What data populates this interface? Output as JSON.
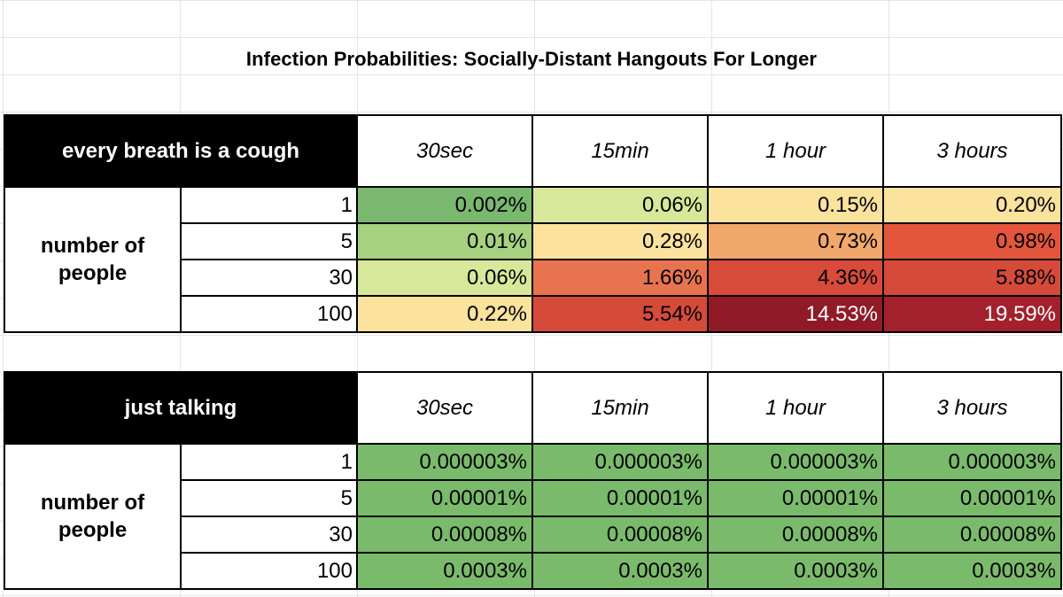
{
  "title": "Infection Probabilities: Socially-Distant Hangouts For Longer",
  "tables": [
    {
      "label": "every breath is a cough",
      "row_group_label": "number of people",
      "columns": [
        "30sec",
        "15min",
        "1 hour",
        "3 hours"
      ],
      "rows": [
        {
          "count": "1",
          "values": [
            "0.002%",
            "0.06%",
            "0.15%",
            "0.20%"
          ],
          "colors": [
            "#79b86e",
            "#d8e89a",
            "#fbe29d",
            "#fbe29d"
          ]
        },
        {
          "count": "5",
          "values": [
            "0.01%",
            "0.28%",
            "0.73%",
            "0.98%"
          ],
          "colors": [
            "#a6d17f",
            "#fbe29d",
            "#f1a86a",
            "#e4553b"
          ]
        },
        {
          "count": "30",
          "values": [
            "0.06%",
            "1.66%",
            "4.36%",
            "5.88%"
          ],
          "colors": [
            "#d8e89a",
            "#e8744f",
            "#d84b3b",
            "#d64a3a"
          ]
        },
        {
          "count": "100",
          "values": [
            "0.22%",
            "5.54%",
            "14.53%",
            "19.59%"
          ],
          "colors": [
            "#fbe29d",
            "#d64a3a",
            "#911a27",
            "#a2212c"
          ]
        }
      ]
    },
    {
      "label": "just talking",
      "row_group_label": "number of people",
      "columns": [
        "30sec",
        "15min",
        "1 hour",
        "3 hours"
      ],
      "rows": [
        {
          "count": "1",
          "values": [
            "0.000003%",
            "0.000003%",
            "0.000003%",
            "0.000003%"
          ],
          "colors": [
            "#7abb6b",
            "#7abb6b",
            "#7abb6b",
            "#7abb6b"
          ]
        },
        {
          "count": "5",
          "values": [
            "0.00001%",
            "0.00001%",
            "0.00001%",
            "0.00001%"
          ],
          "colors": [
            "#7abb6b",
            "#7abb6b",
            "#7abb6b",
            "#7abb6b"
          ]
        },
        {
          "count": "30",
          "values": [
            "0.00008%",
            "0.00008%",
            "0.00008%",
            "0.00008%"
          ],
          "colors": [
            "#7abb6b",
            "#7abb6b",
            "#7abb6b",
            "#7abb6b"
          ]
        },
        {
          "count": "100",
          "values": [
            "0.0003%",
            "0.0003%",
            "0.0003%",
            "0.0003%"
          ],
          "colors": [
            "#7abb6b",
            "#7abb6b",
            "#7abb6b",
            "#7abb6b"
          ]
        }
      ]
    }
  ]
}
